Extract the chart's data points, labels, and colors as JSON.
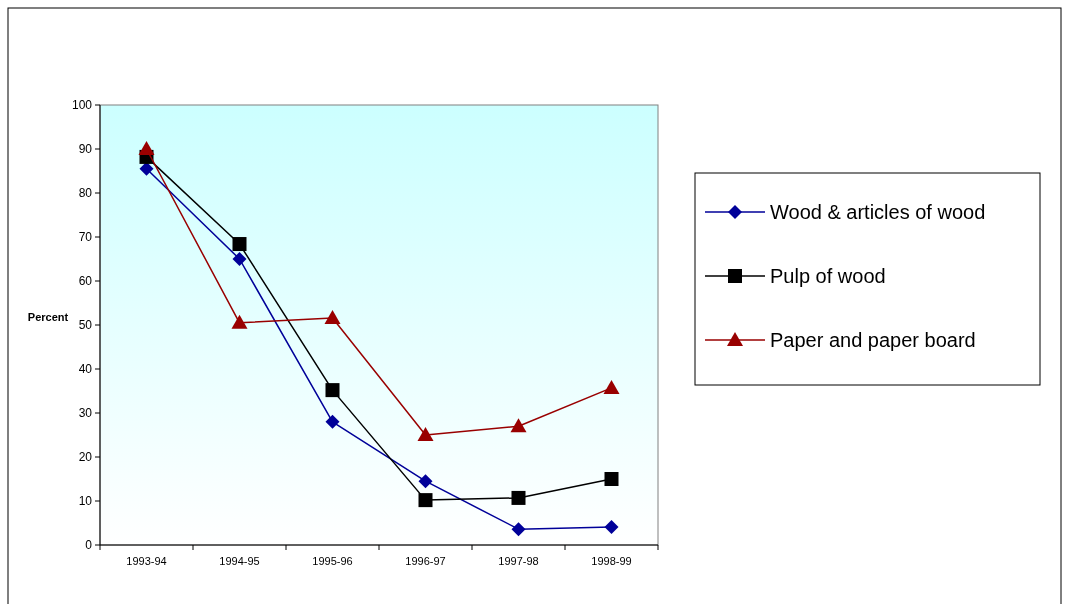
{
  "chart_data": {
    "type": "line",
    "ylabel": "Percent",
    "categories": [
      "1993-94",
      "1994-95",
      "1995-96",
      "1996-97",
      "1997-98",
      "1998-99"
    ],
    "series": [
      {
        "name": "Wood & articles of wood",
        "color": "#000099",
        "marker": "diamond",
        "values": [
          85.5,
          65,
          28,
          14.5,
          3.6,
          4.1
        ]
      },
      {
        "name": "Pulp of wood",
        "color": "#000000",
        "marker": "square",
        "values": [
          88.2,
          68.4,
          35.2,
          10.2,
          10.7,
          15
        ]
      },
      {
        "name": "Paper and paper board",
        "color": "#990000",
        "marker": "triangle",
        "values": [
          90,
          50.5,
          51.6,
          25,
          27,
          35.7
        ]
      }
    ],
    "ylim": [
      0,
      100
    ],
    "yticks": [
      0,
      10,
      20,
      30,
      40,
      50,
      60,
      70,
      80,
      90,
      100
    ],
    "grid": false,
    "legend": "right"
  }
}
